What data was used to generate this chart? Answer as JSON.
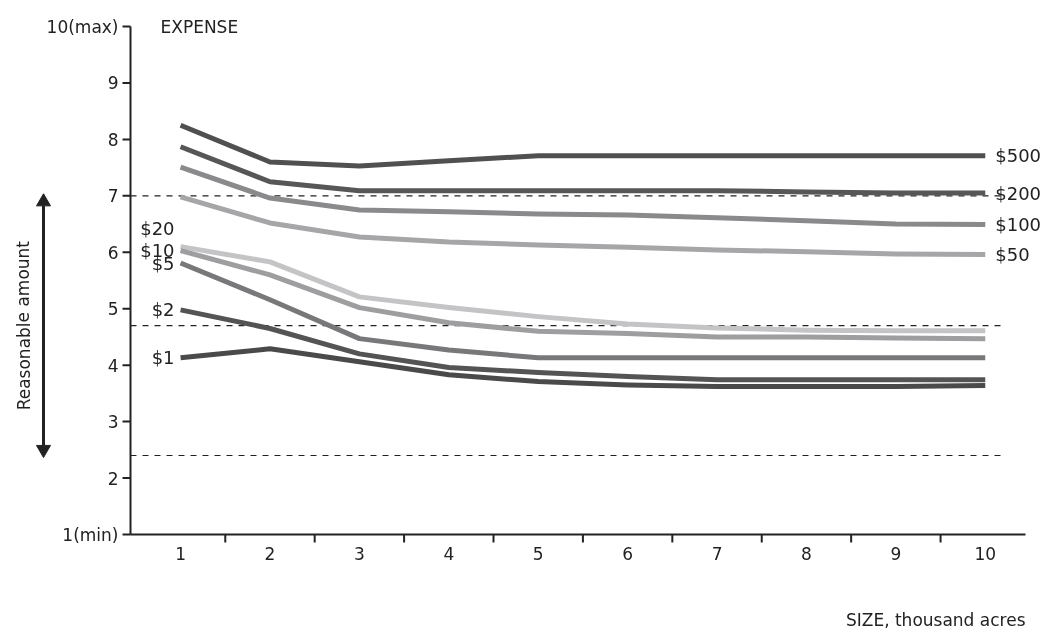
{
  "chart_data": {
    "type": "line",
    "xlabel": "SIZE, thousand acres",
    "ylabel": "EXPENSE",
    "x": [
      1,
      2,
      3,
      4,
      5,
      6,
      7,
      8,
      9,
      10
    ],
    "series": [
      {
        "name": "$500",
        "color": "#505050",
        "values": [
          8.25,
          7.6,
          7.53,
          7.62,
          7.71,
          7.71,
          7.71,
          7.71,
          7.71,
          7.71
        ]
      },
      {
        "name": "$200",
        "color": "#575757",
        "values": [
          7.87,
          7.25,
          7.09,
          7.09,
          7.09,
          7.09,
          7.09,
          7.07,
          7.05,
          7.05
        ]
      },
      {
        "name": "$100",
        "color": "#8a8a8c",
        "values": [
          7.51,
          6.96,
          6.75,
          6.72,
          6.68,
          6.66,
          6.61,
          6.56,
          6.5,
          6.49
        ]
      },
      {
        "name": "$50",
        "color": "#a6a6a8",
        "values": [
          6.98,
          6.52,
          6.27,
          6.18,
          6.13,
          6.09,
          6.04,
          6.01,
          5.97,
          5.96
        ]
      },
      {
        "name": "$20",
        "color": "#c4c4c6",
        "values": [
          6.1,
          5.83,
          5.21,
          5.02,
          4.86,
          4.73,
          4.66,
          4.62,
          4.61,
          4.61
        ]
      },
      {
        "name": "$10",
        "color": "#9e9ea0",
        "values": [
          6.03,
          5.6,
          5.02,
          4.75,
          4.6,
          4.56,
          4.5,
          4.5,
          4.48,
          4.47
        ]
      },
      {
        "name": "$5",
        "color": "#78787a",
        "values": [
          5.81,
          5.16,
          4.47,
          4.27,
          4.13,
          4.13,
          4.13,
          4.13,
          4.13,
          4.13
        ]
      },
      {
        "name": "$2",
        "color": "#545454",
        "values": [
          4.98,
          4.65,
          4.2,
          3.96,
          3.87,
          3.8,
          3.74,
          3.74,
          3.74,
          3.74
        ]
      },
      {
        "name": "$1",
        "color": "#4a4a4a",
        "values": [
          4.13,
          4.29,
          4.06,
          3.83,
          3.71,
          3.65,
          3.62,
          3.62,
          3.62,
          3.64
        ]
      }
    ],
    "xlim": [
      0.44,
      10.45
    ],
    "ylim": [
      1,
      10
    ],
    "xticks": [
      1,
      2,
      3,
      4,
      5,
      6,
      7,
      8,
      9,
      10,
      {
        "value": 1.5,
        "label": null
      },
      {
        "value": 2.5,
        "label": null
      },
      {
        "value": 3.5,
        "label": null
      },
      {
        "value": 4.5,
        "label": null
      },
      {
        "value": 5.5,
        "label": null
      },
      {
        "value": 6.5,
        "label": null
      },
      {
        "value": 7.5,
        "label": null
      },
      {
        "value": 8.5,
        "label": null
      },
      {
        "value": 9.5,
        "label": null
      }
    ],
    "yticks": [
      {
        "value": 1,
        "label": "1(min)"
      },
      2,
      3,
      4,
      5,
      6,
      7,
      8,
      9,
      {
        "value": 10,
        "label": "10(max)"
      }
    ],
    "ref_lines": [
      {
        "axis": "y",
        "value": 7,
        "line_style": "dashed"
      },
      {
        "axis": "y",
        "value": 4.7,
        "line_style": "dashed"
      },
      {
        "axis": "y",
        "value": 2.4,
        "line_style": "dashed"
      }
    ],
    "annotations": [
      "Reasonable amount"
    ],
    "grid": false,
    "marker": "none",
    "line_style": "solid"
  }
}
